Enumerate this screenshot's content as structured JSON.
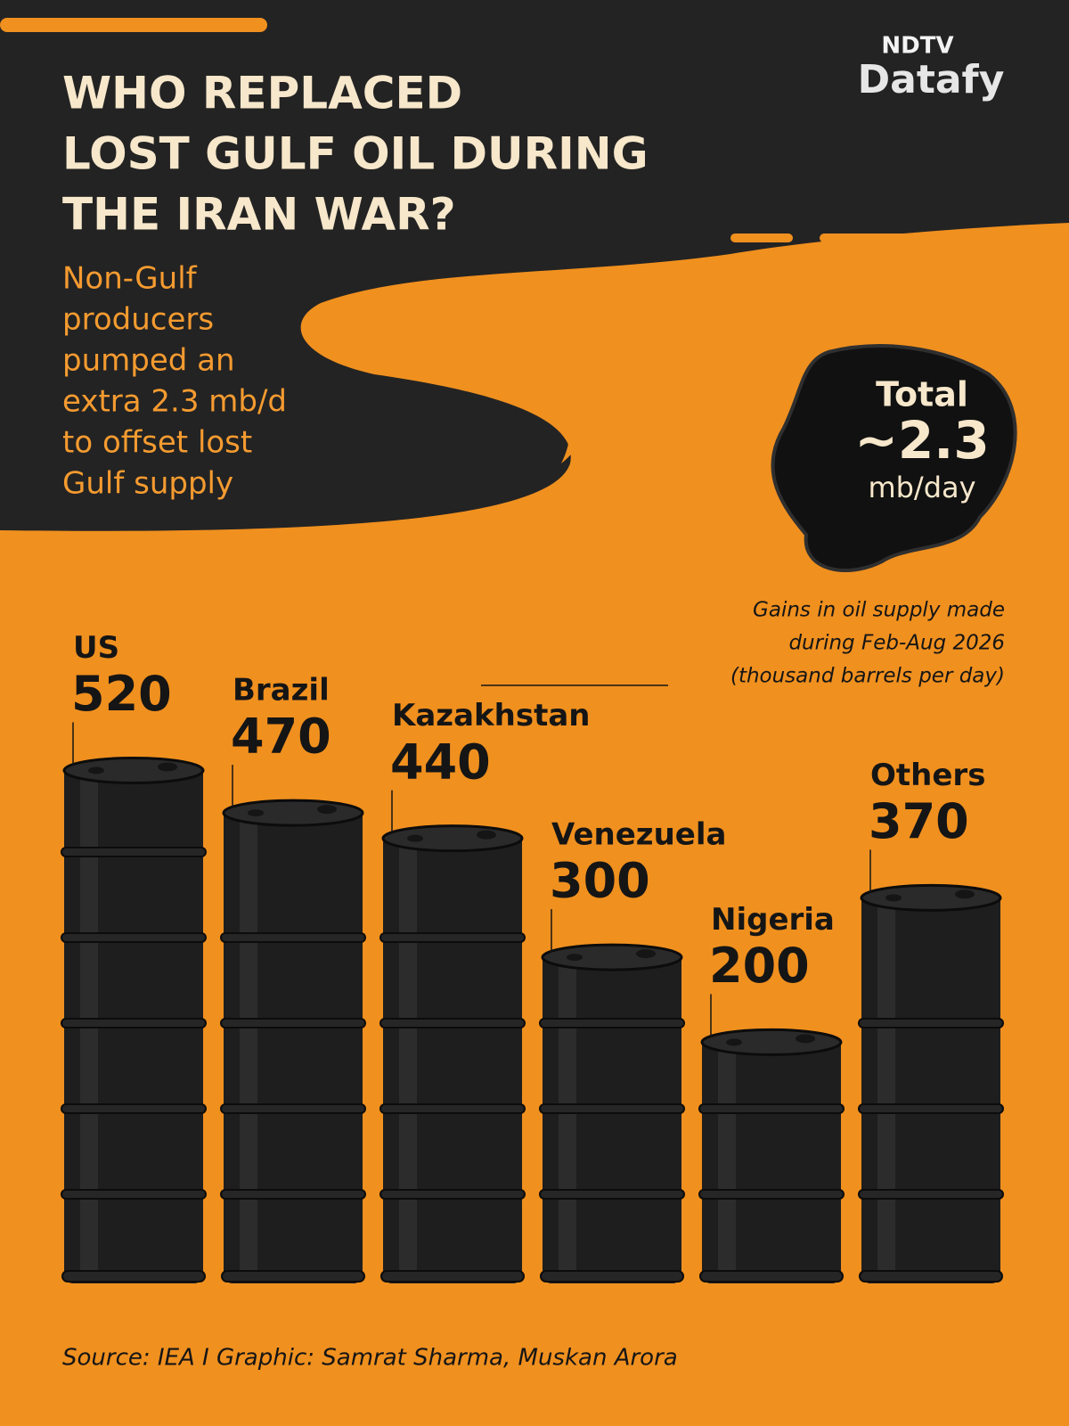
{
  "chart_data": {
    "type": "bar",
    "title": [
      "WHO REPLACED",
      "LOST GULF OIL DURING",
      "THE IRAN WAR?"
    ],
    "subtitle": [
      "Non-Gulf",
      "producers",
      "pumped an",
      "extra 2.3 mb/d",
      "to offset lost",
      "Gulf supply"
    ],
    "logo": [
      "NDTV",
      "Datafy"
    ],
    "total": [
      "Total",
      "~2.3",
      "mb/day"
    ],
    "note": [
      "Gains in oil supply made",
      "during Feb-Aug 2026",
      "(thousand barrels per day)"
    ],
    "categories": [
      "US",
      "Brazil",
      "Kazakhstan",
      "Venezuela",
      "Nigeria",
      "Others"
    ],
    "values": [
      520,
      470,
      440,
      300,
      200,
      370
    ],
    "color": "#1e1e1e",
    "source": "Source: IEA I Graphic: Samrat Sharma, Muskan Arora"
  }
}
